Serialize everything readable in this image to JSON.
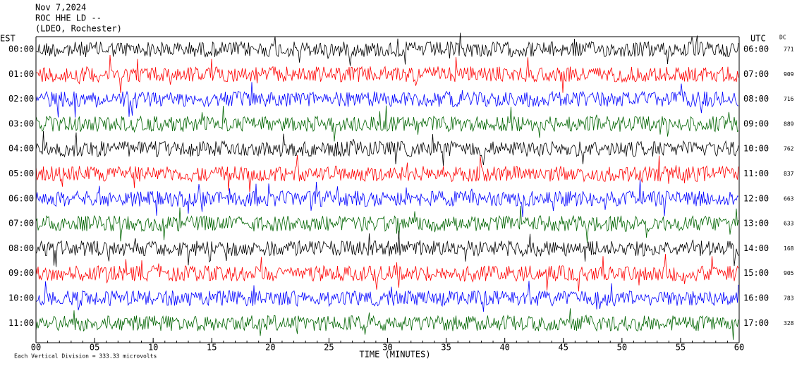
{
  "chart_data": {
    "type": "helicorder",
    "title_lines": [
      "Nov 7,2024",
      "ROC HHE LD --",
      "(LDEO, Rochester)"
    ],
    "left_axis_label": "EST",
    "right_axis_label": "UTC",
    "dc_label": "DC",
    "rows": [
      {
        "est": "00:00",
        "utc": "06:00",
        "dc": 771
      },
      {
        "est": "01:00",
        "utc": "07:00",
        "dc": 909
      },
      {
        "est": "02:00",
        "utc": "08:00",
        "dc": 716
      },
      {
        "est": "03:00",
        "utc": "09:00",
        "dc": 889
      },
      {
        "est": "04:00",
        "utc": "10:00",
        "dc": 762
      },
      {
        "est": "05:00",
        "utc": "11:00",
        "dc": 837
      },
      {
        "est": "06:00",
        "utc": "12:00",
        "dc": 663
      },
      {
        "est": "07:00",
        "utc": "13:00",
        "dc": 633
      },
      {
        "est": "08:00",
        "utc": "14:00",
        "dc": 168
      },
      {
        "est": "09:00",
        "utc": "15:00",
        "dc": 905
      },
      {
        "est": "10:00",
        "utc": "16:00",
        "dc": 783
      },
      {
        "est": "11:00",
        "utc": "17:00",
        "dc": 328
      }
    ],
    "colors": [
      "#000000",
      "#ff0000",
      "#0000ff",
      "#006400"
    ],
    "x_label": "TIME (MINUTES)",
    "xlim": [
      0,
      60
    ],
    "xticks": [
      {
        "value": 0,
        "label": "00"
      },
      {
        "value": 5,
        "label": "05"
      },
      10,
      15,
      20,
      25,
      30,
      35,
      40,
      45,
      50,
      55,
      60
    ],
    "footnote": "Each Vertical Division =  333.33 microvolts"
  }
}
